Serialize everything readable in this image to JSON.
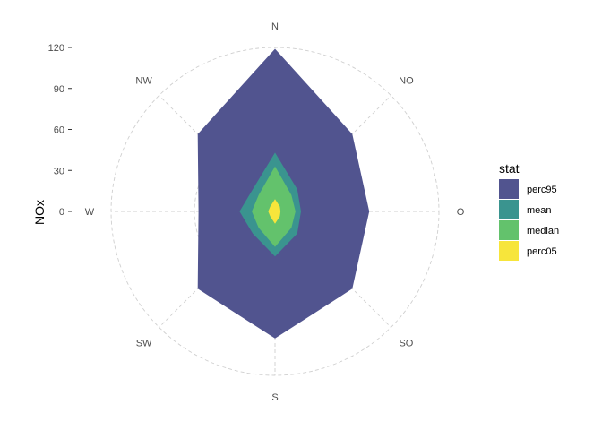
{
  "chart_data": {
    "type": "radar",
    "ylabel": "NOx",
    "ylim": [
      0,
      120
    ],
    "y_ticks": [
      0,
      30,
      60,
      90,
      120
    ],
    "directions": [
      "N",
      "NO",
      "O",
      "SO",
      "S",
      "SW",
      "W",
      "NW"
    ],
    "grid": true,
    "legend_title": "stat",
    "legend_position": "right",
    "series": [
      {
        "name": "perc95",
        "color": "#51548f",
        "values": [
          119,
          80,
          69,
          80,
          93,
          80,
          56,
          80
        ]
      },
      {
        "name": "mean",
        "color": "#3a948f",
        "values": [
          43,
          23,
          19,
          23,
          33,
          23,
          26,
          23
        ]
      },
      {
        "name": "median",
        "color": "#63c26c",
        "values": [
          33,
          17,
          15,
          17,
          26,
          17,
          17,
          17
        ]
      },
      {
        "name": "perc05",
        "color": "#f7e53b",
        "values": [
          9,
          5,
          4,
          5,
          9,
          5,
          5,
          5
        ]
      }
    ]
  }
}
